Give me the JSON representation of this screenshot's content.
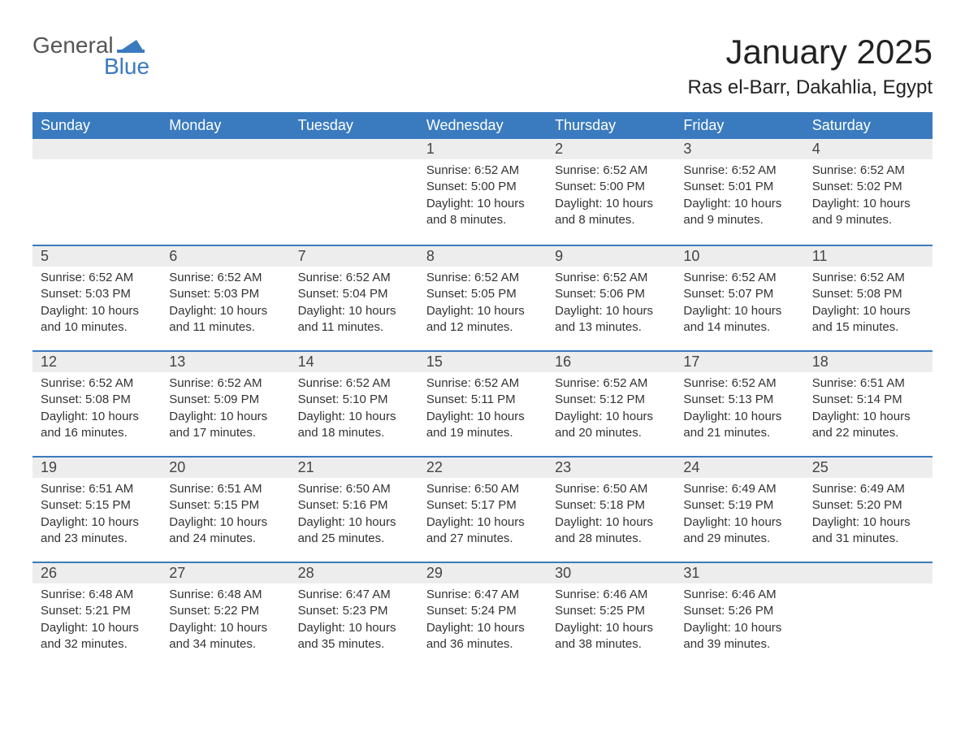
{
  "logo": {
    "word1": "General",
    "word2": "Blue",
    "icon_color": "#3a7bbf"
  },
  "title": "January 2025",
  "location": "Ras el-Barr, Dakahlia, Egypt",
  "colors": {
    "header_bg": "#3a7bbf",
    "header_text": "#ffffff",
    "daynum_bg": "#ededed",
    "row_border": "#3a7bbf",
    "body_text": "#333333",
    "page_bg": "#ffffff"
  },
  "fonts": {
    "title_size_pt": 32,
    "location_size_pt": 18,
    "th_size_pt": 14,
    "cell_size_pt": 11
  },
  "day_headers": [
    "Sunday",
    "Monday",
    "Tuesday",
    "Wednesday",
    "Thursday",
    "Friday",
    "Saturday"
  ],
  "weeks": [
    [
      null,
      null,
      null,
      {
        "n": "1",
        "sunrise": "6:52 AM",
        "sunset": "5:00 PM",
        "daylight": "10 hours and 8 minutes."
      },
      {
        "n": "2",
        "sunrise": "6:52 AM",
        "sunset": "5:00 PM",
        "daylight": "10 hours and 8 minutes."
      },
      {
        "n": "3",
        "sunrise": "6:52 AM",
        "sunset": "5:01 PM",
        "daylight": "10 hours and 9 minutes."
      },
      {
        "n": "4",
        "sunrise": "6:52 AM",
        "sunset": "5:02 PM",
        "daylight": "10 hours and 9 minutes."
      }
    ],
    [
      {
        "n": "5",
        "sunrise": "6:52 AM",
        "sunset": "5:03 PM",
        "daylight": "10 hours and 10 minutes."
      },
      {
        "n": "6",
        "sunrise": "6:52 AM",
        "sunset": "5:03 PM",
        "daylight": "10 hours and 11 minutes."
      },
      {
        "n": "7",
        "sunrise": "6:52 AM",
        "sunset": "5:04 PM",
        "daylight": "10 hours and 11 minutes."
      },
      {
        "n": "8",
        "sunrise": "6:52 AM",
        "sunset": "5:05 PM",
        "daylight": "10 hours and 12 minutes."
      },
      {
        "n": "9",
        "sunrise": "6:52 AM",
        "sunset": "5:06 PM",
        "daylight": "10 hours and 13 minutes."
      },
      {
        "n": "10",
        "sunrise": "6:52 AM",
        "sunset": "5:07 PM",
        "daylight": "10 hours and 14 minutes."
      },
      {
        "n": "11",
        "sunrise": "6:52 AM",
        "sunset": "5:08 PM",
        "daylight": "10 hours and 15 minutes."
      }
    ],
    [
      {
        "n": "12",
        "sunrise": "6:52 AM",
        "sunset": "5:08 PM",
        "daylight": "10 hours and 16 minutes."
      },
      {
        "n": "13",
        "sunrise": "6:52 AM",
        "sunset": "5:09 PM",
        "daylight": "10 hours and 17 minutes."
      },
      {
        "n": "14",
        "sunrise": "6:52 AM",
        "sunset": "5:10 PM",
        "daylight": "10 hours and 18 minutes."
      },
      {
        "n": "15",
        "sunrise": "6:52 AM",
        "sunset": "5:11 PM",
        "daylight": "10 hours and 19 minutes."
      },
      {
        "n": "16",
        "sunrise": "6:52 AM",
        "sunset": "5:12 PM",
        "daylight": "10 hours and 20 minutes."
      },
      {
        "n": "17",
        "sunrise": "6:52 AM",
        "sunset": "5:13 PM",
        "daylight": "10 hours and 21 minutes."
      },
      {
        "n": "18",
        "sunrise": "6:51 AM",
        "sunset": "5:14 PM",
        "daylight": "10 hours and 22 minutes."
      }
    ],
    [
      {
        "n": "19",
        "sunrise": "6:51 AM",
        "sunset": "5:15 PM",
        "daylight": "10 hours and 23 minutes."
      },
      {
        "n": "20",
        "sunrise": "6:51 AM",
        "sunset": "5:15 PM",
        "daylight": "10 hours and 24 minutes."
      },
      {
        "n": "21",
        "sunrise": "6:50 AM",
        "sunset": "5:16 PM",
        "daylight": "10 hours and 25 minutes."
      },
      {
        "n": "22",
        "sunrise": "6:50 AM",
        "sunset": "5:17 PM",
        "daylight": "10 hours and 27 minutes."
      },
      {
        "n": "23",
        "sunrise": "6:50 AM",
        "sunset": "5:18 PM",
        "daylight": "10 hours and 28 minutes."
      },
      {
        "n": "24",
        "sunrise": "6:49 AM",
        "sunset": "5:19 PM",
        "daylight": "10 hours and 29 minutes."
      },
      {
        "n": "25",
        "sunrise": "6:49 AM",
        "sunset": "5:20 PM",
        "daylight": "10 hours and 31 minutes."
      }
    ],
    [
      {
        "n": "26",
        "sunrise": "6:48 AM",
        "sunset": "5:21 PM",
        "daylight": "10 hours and 32 minutes."
      },
      {
        "n": "27",
        "sunrise": "6:48 AM",
        "sunset": "5:22 PM",
        "daylight": "10 hours and 34 minutes."
      },
      {
        "n": "28",
        "sunrise": "6:47 AM",
        "sunset": "5:23 PM",
        "daylight": "10 hours and 35 minutes."
      },
      {
        "n": "29",
        "sunrise": "6:47 AM",
        "sunset": "5:24 PM",
        "daylight": "10 hours and 36 minutes."
      },
      {
        "n": "30",
        "sunrise": "6:46 AM",
        "sunset": "5:25 PM",
        "daylight": "10 hours and 38 minutes."
      },
      {
        "n": "31",
        "sunrise": "6:46 AM",
        "sunset": "5:26 PM",
        "daylight": "10 hours and 39 minutes."
      },
      null
    ]
  ],
  "labels": {
    "sunrise": "Sunrise:",
    "sunset": "Sunset:",
    "daylight": "Daylight:"
  }
}
